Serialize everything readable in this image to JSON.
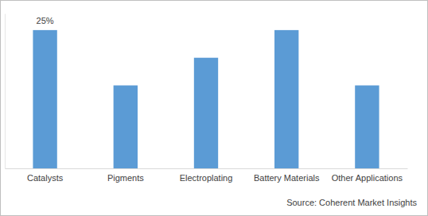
{
  "chart_data": {
    "type": "bar",
    "categories": [
      "Catalysts",
      "Pigments",
      "Electroplating",
      "Battery Materials",
      "Other Applications"
    ],
    "values": [
      25,
      15,
      20,
      25,
      15
    ],
    "value_labels": [
      "25%",
      null,
      null,
      null,
      null
    ],
    "data_labels": true,
    "color": "#5b9bd5",
    "ylim": [
      0,
      28
    ],
    "tick_labels": "x",
    "source": "Source: Coherent Market Insights"
  }
}
